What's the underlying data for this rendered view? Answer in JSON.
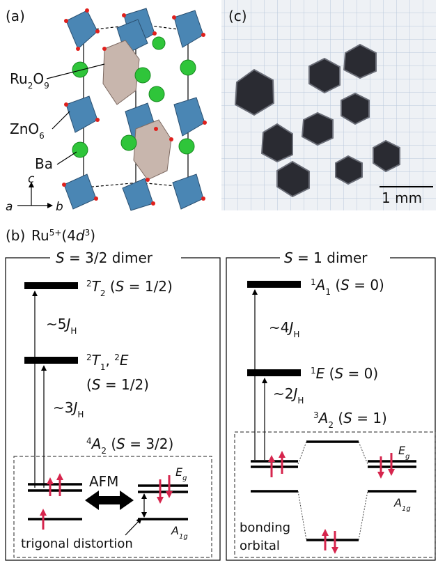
{
  "panel_a": {
    "label": "(a)",
    "ru2o9": [
      "Ru",
      "2",
      "O",
      "9"
    ],
    "zno6": [
      "ZnO",
      "6"
    ],
    "ba": "Ba",
    "axis_c": "c",
    "axis_a": "a",
    "axis_b": "b"
  },
  "panel_c": {
    "label": "(c)",
    "scale_bar": "1 mm"
  },
  "panel_b": {
    "label": "(b)",
    "ion": [
      "Ru",
      "5+",
      "(4",
      "d",
      "3",
      ")"
    ],
    "left": {
      "title": [
        "S",
        " = 3/2 dimer"
      ],
      "t2": [
        "2",
        "T",
        "2",
        " (",
        "S",
        " = 1/2)"
      ],
      "gap_upper": [
        "~5",
        "J",
        "H"
      ],
      "t1_e": [
        "2",
        "T",
        "1",
        ", ",
        "2",
        "E"
      ],
      "t1_e_spin": [
        "(",
        "S",
        " = 1/2)"
      ],
      "gap_lower": [
        "~3",
        "J",
        "H"
      ],
      "a2": [
        "4",
        "A",
        "2",
        " (",
        "S",
        " = 3/2)"
      ],
      "afm": "AFM",
      "eg": [
        "E",
        "g"
      ],
      "a1g": [
        "A",
        "1g"
      ],
      "trigonal": "trigonal distortion"
    },
    "right": {
      "title": [
        "S",
        " = 1 dimer"
      ],
      "a1": [
        "1",
        "A",
        "1",
        " (",
        "S",
        " = 0)"
      ],
      "gap_upper": [
        "~4",
        "J",
        "H"
      ],
      "e": [
        "1",
        "E",
        " (",
        "S",
        " = 0)"
      ],
      "gap_lower": [
        "~2",
        "J",
        "H"
      ],
      "a2": [
        "3",
        "A",
        "2",
        " (",
        "S",
        " = 1)"
      ],
      "eg": [
        "E",
        "g"
      ],
      "a1g": [
        "A",
        "1g"
      ],
      "bonding": "bonding",
      "orbital": "orbital"
    }
  }
}
